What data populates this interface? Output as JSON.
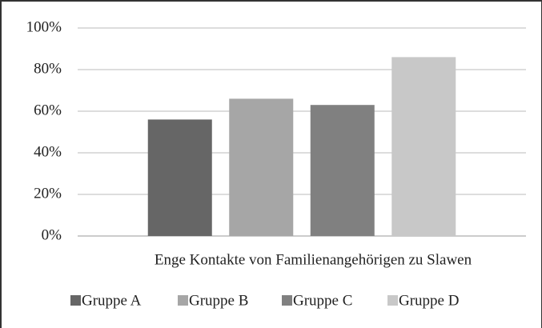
{
  "chart_data": {
    "type": "bar",
    "categories": [
      "Enge Kontakte von Familienangehörigen zu Slawen"
    ],
    "series": [
      {
        "name": "Gruppe A",
        "color": "#666666",
        "values": [
          56
        ]
      },
      {
        "name": "Gruppe B",
        "color": "#a6a6a6",
        "values": [
          66
        ]
      },
      {
        "name": "Gruppe C",
        "color": "#808080",
        "values": [
          63
        ]
      },
      {
        "name": "Gruppe D",
        "color": "#c8c8c8",
        "values": [
          86
        ]
      }
    ],
    "ylim": [
      0,
      100
    ],
    "yticks": [
      {
        "value": 0,
        "label": "0%"
      },
      {
        "value": 20,
        "label": "20%"
      },
      {
        "value": 40,
        "label": "40%"
      },
      {
        "value": 60,
        "label": "60%"
      },
      {
        "value": 80,
        "label": "80%"
      },
      {
        "value": 100,
        "label": "100%"
      }
    ],
    "grid": true,
    "legend": "bottom"
  }
}
